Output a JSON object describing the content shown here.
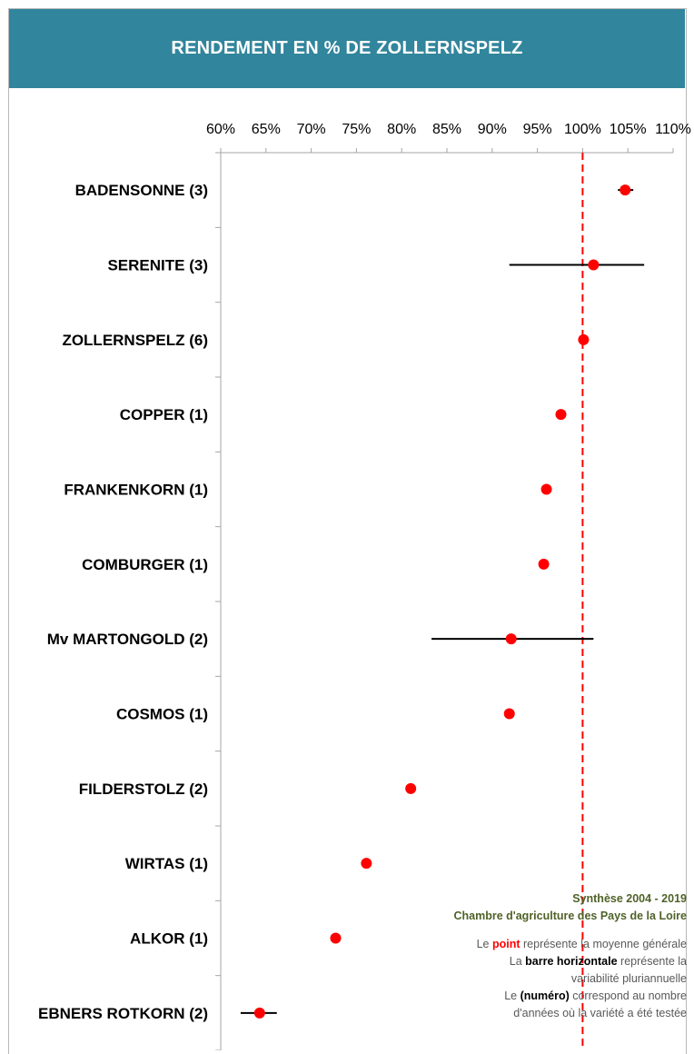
{
  "title": "RENDEMENT EN % DE ZOLLERNSPELZ",
  "chart_data": {
    "type": "scatter",
    "orientation": "horizontal-dot-plot-with-error-bars",
    "title": "RENDEMENT EN % DE ZOLLERNSPELZ",
    "x_axis": {
      "position": "top",
      "min": 60,
      "max": 110,
      "step": 5,
      "tick_labels": [
        "60%",
        "65%",
        "70%",
        "75%",
        "80%",
        "85%",
        "90%",
        "95%",
        "100%",
        "105%",
        "110%"
      ]
    },
    "reference_line": {
      "x": 100,
      "style": "dashed",
      "color": "#ff0000"
    },
    "categories": [
      "BADENSONNE (3)",
      "SERENITE (3)",
      "ZOLLERNSPELZ (6)",
      "COPPER (1)",
      "FRANKENKORN (1)",
      "COMBURGER (1)",
      "Mv MARTONGOLD (2)",
      "COSMOS (1)",
      "FILDERSTOLZ (2)",
      "WIRTAS (1)",
      "ALKOR (1)",
      "EBNERS ROTKORN (2)"
    ],
    "points": [
      {
        "mean": 104.7,
        "min": 103.9,
        "max": 105.6
      },
      {
        "mean": 101.2,
        "min": 91.9,
        "max": 106.8
      },
      {
        "mean": 100.1,
        "min": null,
        "max": null
      },
      {
        "mean": 97.6,
        "min": null,
        "max": null
      },
      {
        "mean": 96.0,
        "min": null,
        "max": null
      },
      {
        "mean": 95.7,
        "min": null,
        "max": null
      },
      {
        "mean": 92.1,
        "min": 83.3,
        "max": 101.2
      },
      {
        "mean": 91.9,
        "min": null,
        "max": null
      },
      {
        "mean": 81.0,
        "min": 80.7,
        "max": 81.3
      },
      {
        "mean": 76.1,
        "min": null,
        "max": null
      },
      {
        "mean": 72.7,
        "min": null,
        "max": null
      },
      {
        "mean": 64.3,
        "min": 62.2,
        "max": 66.2
      }
    ],
    "point_color": "#ff0000",
    "bar_color": "#000000",
    "grid": false
  },
  "legend": {
    "source_line1": "Synthèse 2004 - 2019",
    "source_line2": "Chambre d'agriculture des Pays de la Loire",
    "point_pre": "Le ",
    "point_word": "point",
    "point_post": " représente la moyenne générale",
    "bar_pre": "La ",
    "bar_word": "barre horizontale",
    "bar_post": " représente la",
    "bar_line2": "variabilité pluriannuelle",
    "num_pre": "Le ",
    "num_word": "(numéro)",
    "num_post": " correspond au nombre",
    "num_line2": "d'années où la variété a été testée"
  }
}
